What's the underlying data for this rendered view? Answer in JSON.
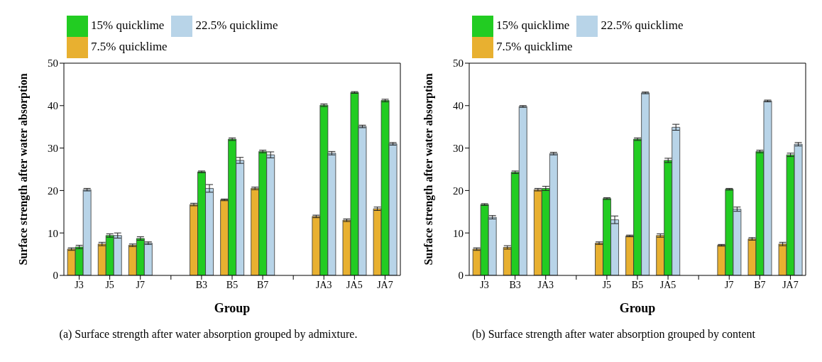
{
  "chart_data": [
    {
      "type": "bar",
      "xlabel": "Group",
      "ylabel": "Surface strength after water absorption",
      "categories": [
        "J3",
        "J5",
        "J7",
        null,
        "B3",
        "B5",
        "B7",
        null,
        "JA3",
        "JA5",
        "JA7"
      ],
      "ylim": [
        0,
        50
      ],
      "yticks": [
        0,
        10,
        20,
        30,
        40,
        50
      ],
      "grid": false,
      "legend": "top left",
      "annotations": [
        "(a) Surface strength after water absorption grouped by admixture."
      ],
      "series": [
        {
          "name": "7.5% quicklime",
          "color": "#e8b030",
          "values": [
            6.2,
            7.4,
            7.1,
            null,
            16.7,
            17.8,
            20.5,
            null,
            13.9,
            13.0,
            15.7
          ],
          "errors": [
            0.3,
            0.4,
            0.3,
            null,
            0.3,
            0.2,
            0.3,
            null,
            0.3,
            0.3,
            0.4
          ]
        },
        {
          "name": "15% quicklime",
          "color": "#22cc22",
          "values": [
            6.7,
            9.4,
            8.7,
            null,
            24.4,
            32.1,
            29.2,
            null,
            40.1,
            43.1,
            41.2
          ],
          "errors": [
            0.4,
            0.4,
            0.4,
            null,
            0.2,
            0.3,
            0.3,
            null,
            0.3,
            0.2,
            0.3
          ]
        },
        {
          "name": "22.5% quicklime",
          "color": "#b8d4e8",
          "values": [
            20.2,
            9.4,
            7.6,
            null,
            20.5,
            27.1,
            28.4,
            null,
            28.8,
            35.1,
            31.0
          ],
          "errors": [
            0.3,
            0.6,
            0.3,
            null,
            0.9,
            0.7,
            0.7,
            null,
            0.4,
            0.3,
            0.3
          ]
        }
      ]
    },
    {
      "type": "bar",
      "xlabel": "Group",
      "ylabel": "Surface strength after water absorption",
      "categories": [
        "J3",
        "B3",
        "JA3",
        null,
        "J5",
        "B5",
        "JA5",
        null,
        "J7",
        "B7",
        "JA7"
      ],
      "ylim": [
        0,
        50
      ],
      "yticks": [
        0,
        10,
        20,
        30,
        40,
        50
      ],
      "grid": false,
      "legend": "top left",
      "annotations": [
        "(b) Surface strength after water absorption grouped by content"
      ],
      "series": [
        {
          "name": "7.5% quicklime",
          "color": "#e8b030",
          "values": [
            6.2,
            6.6,
            20.2,
            null,
            7.6,
            9.3,
            9.4,
            null,
            7.1,
            8.6,
            7.4
          ],
          "errors": [
            0.3,
            0.4,
            0.3,
            null,
            0.3,
            0.2,
            0.4,
            null,
            0.2,
            0.3,
            0.4
          ]
        },
        {
          "name": "15% quicklime",
          "color": "#22cc22",
          "values": [
            16.7,
            24.3,
            20.5,
            null,
            18.1,
            32.1,
            27.1,
            null,
            20.3,
            29.2,
            28.4
          ],
          "errors": [
            0.2,
            0.3,
            0.5,
            null,
            0.2,
            0.3,
            0.5,
            null,
            0.2,
            0.3,
            0.4
          ]
        },
        {
          "name": "22.5% quicklime",
          "color": "#b8d4e8",
          "values": [
            13.7,
            39.8,
            28.7,
            null,
            13.1,
            43.0,
            34.9,
            null,
            15.6,
            41.1,
            30.9
          ],
          "errors": [
            0.4,
            0.2,
            0.3,
            null,
            0.9,
            0.2,
            0.7,
            null,
            0.5,
            0.2,
            0.4
          ]
        }
      ]
    }
  ]
}
